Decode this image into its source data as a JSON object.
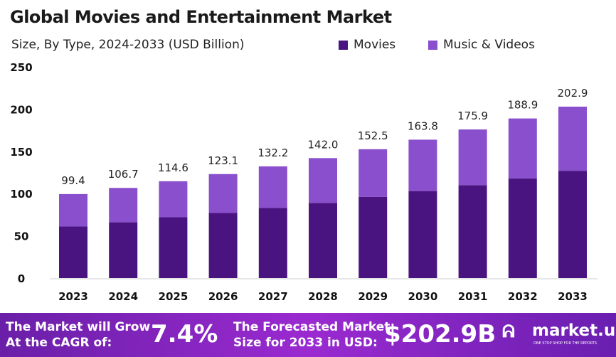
{
  "chart_data": {
    "type": "bar",
    "stacked": true,
    "title": "Global Movies and Entertainment Market",
    "subtitle": "Size, By Type, 2024-2033 (USD Billion)",
    "categories": [
      "2023",
      "2024",
      "2025",
      "2026",
      "2027",
      "2028",
      "2029",
      "2030",
      "2031",
      "2032",
      "2033"
    ],
    "totals": [
      99.4,
      106.7,
      114.6,
      123.1,
      132.2,
      142.0,
      152.5,
      163.8,
      175.9,
      188.9,
      202.9
    ],
    "series": [
      {
        "name": "Movies",
        "color": "#4a1480",
        "values": [
          61,
          66,
          72,
          77,
          83,
          89,
          96,
          103,
          110,
          118,
          127
        ]
      },
      {
        "name": "Music & Videos",
        "color": "#8a4fcc",
        "values": [
          38.4,
          40.7,
          42.6,
          46.1,
          49.2,
          53.0,
          56.5,
          60.8,
          65.9,
          70.9,
          75.9
        ]
      }
    ],
    "yticks": [
      "0",
      "50",
      "100",
      "150",
      "200",
      "250"
    ],
    "ylim": [
      0,
      250
    ],
    "grid": false,
    "legend": "top-right"
  },
  "banner": {
    "cagr_text_1": "The Market will Grow",
    "cagr_text_2": "At the CAGR of:",
    "cagr_value": "7.4%",
    "forecast_text_1": "The Forecasted Market",
    "forecast_text_2": "Size for 2033 in USD:",
    "forecast_value": "$202.9B",
    "logo": "market.us",
    "tagline": "ONE STOP SHOP FOR THE REPORTS"
  }
}
